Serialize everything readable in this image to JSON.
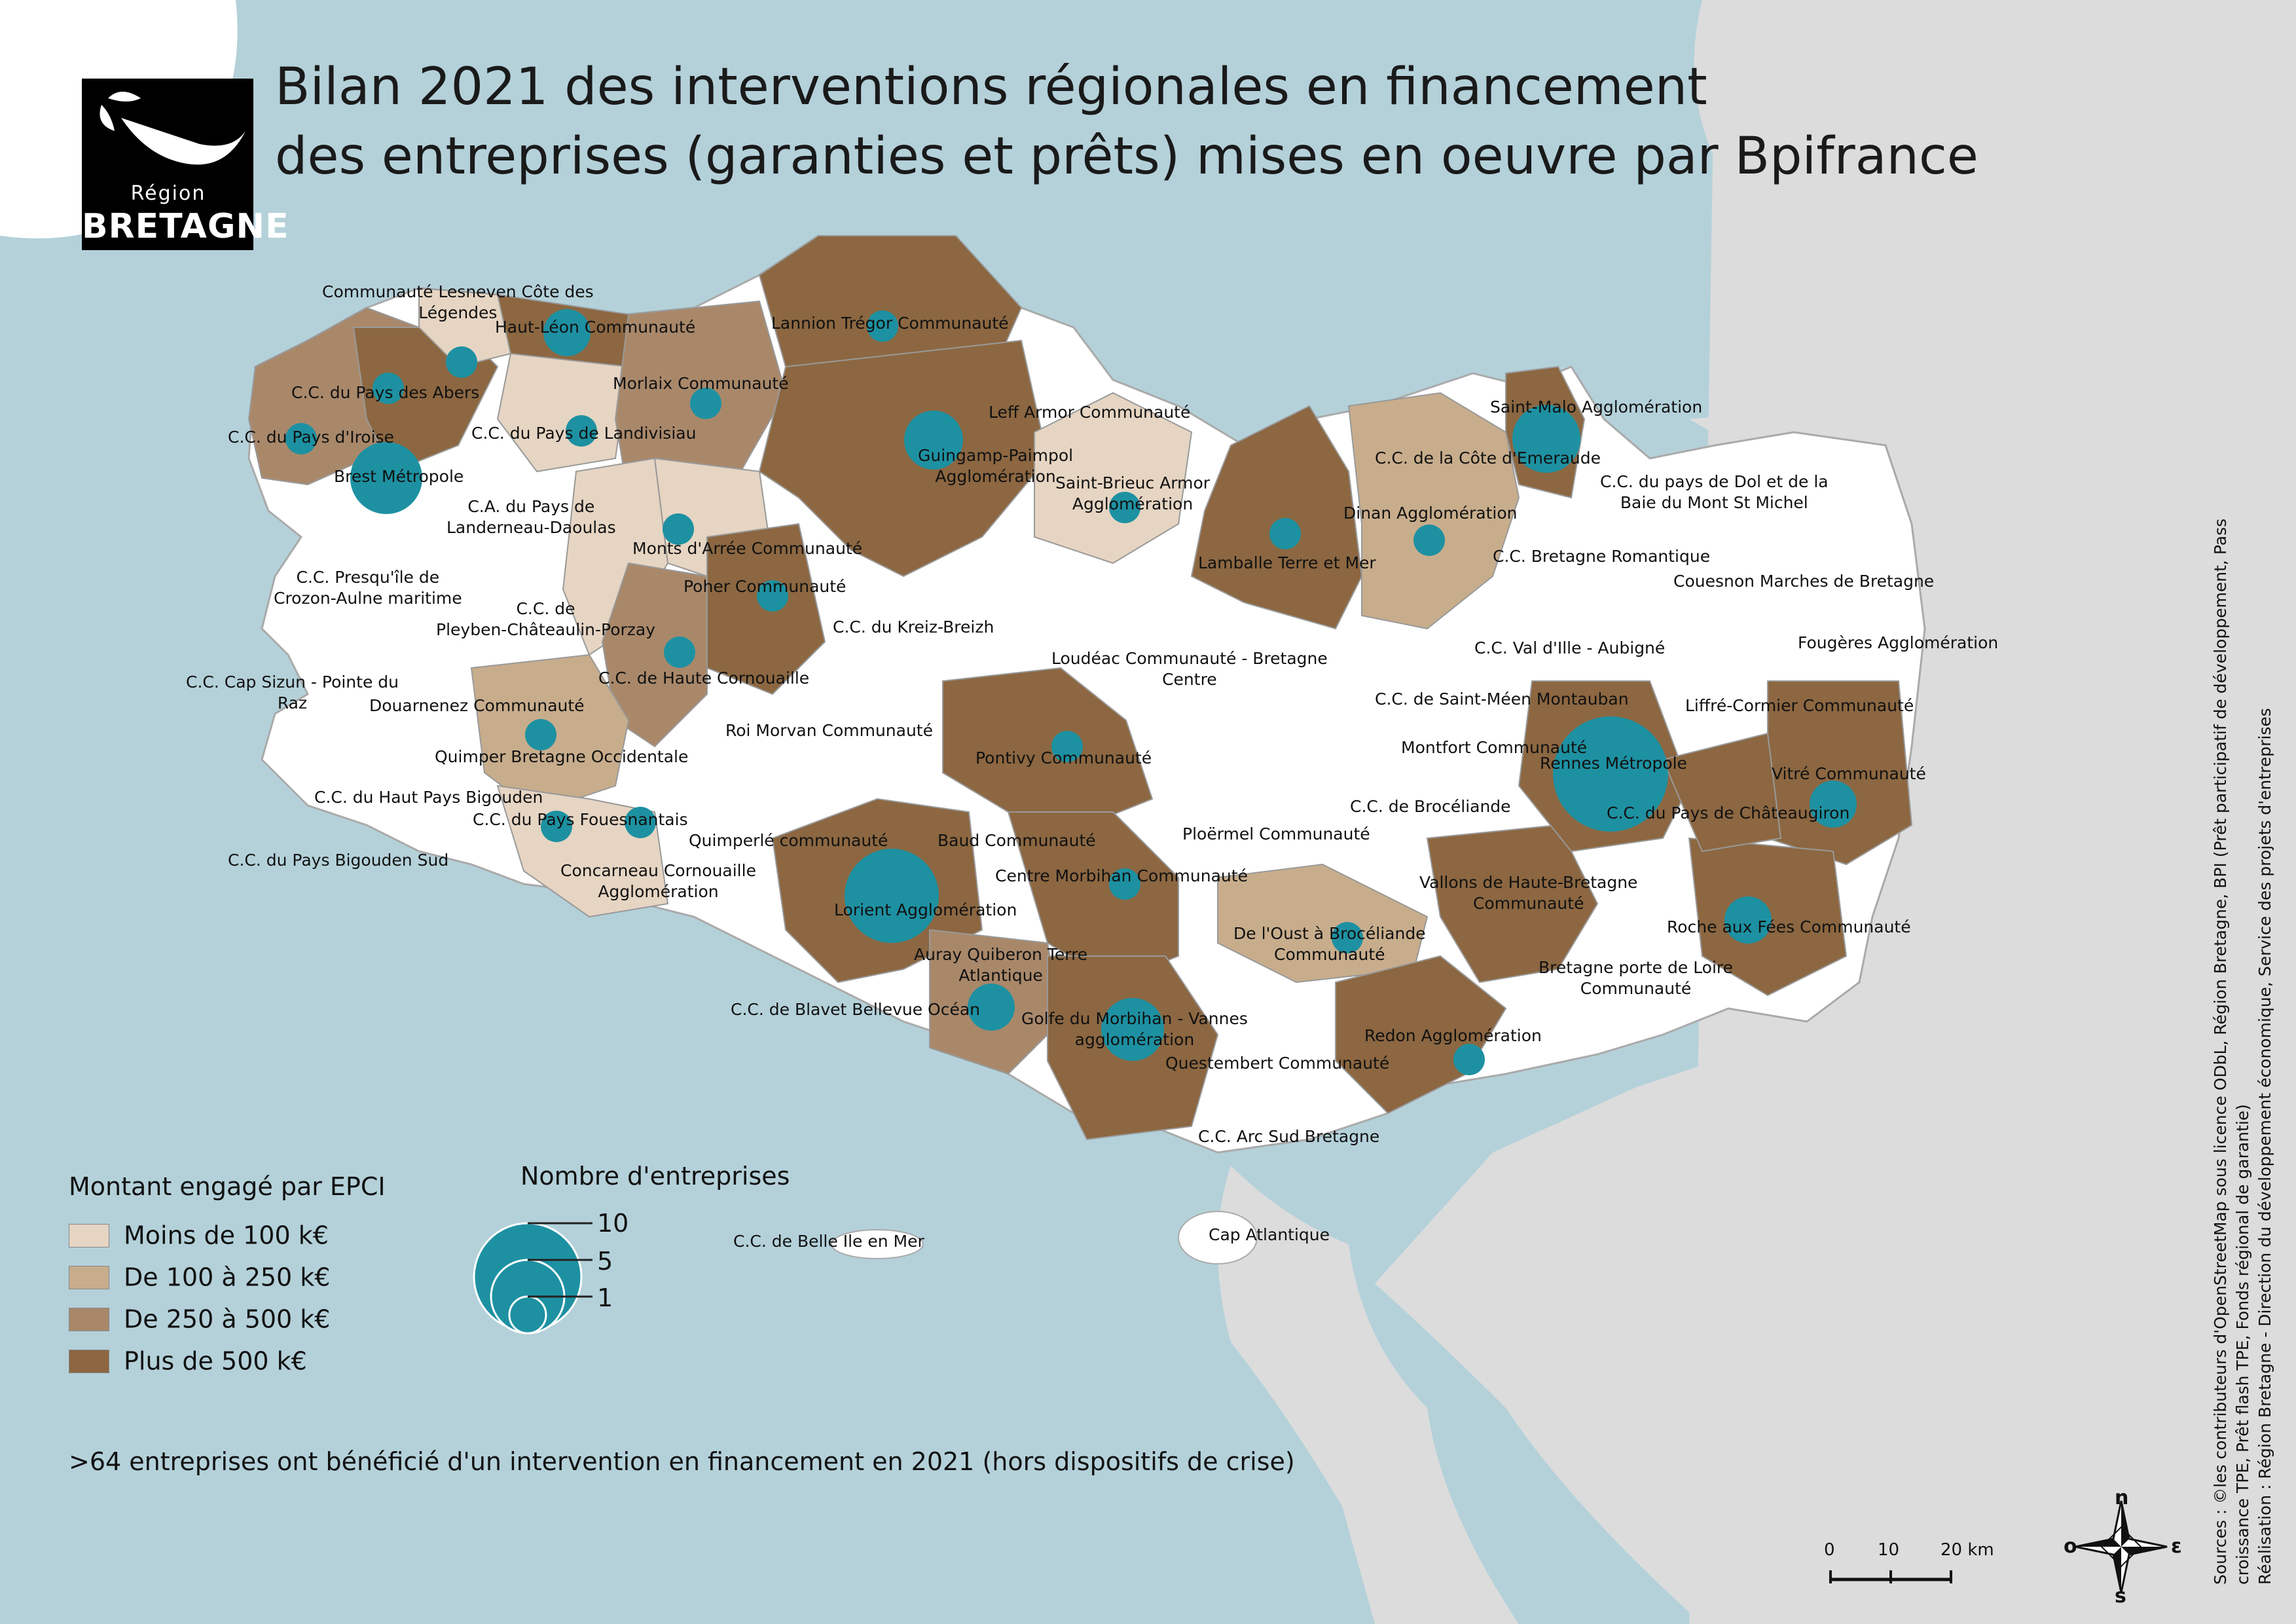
{
  "title": {
    "line1": "Bilan 2021 des interventions régionales en financement",
    "line2": "des entreprises (garanties et prêts) mises en oeuvre par Bpifrance"
  },
  "logo": {
    "line1": "Région",
    "line2": "BRETAGNE"
  },
  "colors": {
    "sea": "#b4d1da",
    "land_outside": "#dcdcdc",
    "white_epci": "#ffffff",
    "moins_100": "#e6d5c3",
    "de_100_250": "#c8ad8c",
    "de_250_500": "#a9886a",
    "plus_500": "#8c6741",
    "bubble": "#1d91a2"
  },
  "legend": {
    "montant_title": "Montant engagé par EPCI",
    "classes": [
      {
        "label": "Moins de 100 k€",
        "color": "#e6d5c3"
      },
      {
        "label": "De 100 à 250 k€",
        "color": "#c8ad8c"
      },
      {
        "label": "De 250 à 500 k€",
        "color": "#a9886a"
      },
      {
        "label": "Plus de 500 k€",
        "color": "#8c6741"
      }
    ],
    "nombre_title": "Nombre d'entreprises",
    "bubble_values": [
      "10",
      "5",
      "1"
    ]
  },
  "epci_labels": [
    {
      "id": "lesneven",
      "text": "Communauté Lesneven Côte des",
      "text2": "Légendes"
    },
    {
      "id": "hautleon",
      "text": "Haut-Léon Communauté"
    },
    {
      "id": "lannion",
      "text": "Lannion Trégor Communauté"
    },
    {
      "id": "abers",
      "text": "C.C. du Pays des Abers"
    },
    {
      "id": "morlaix",
      "text": "Morlaix Communauté"
    },
    {
      "id": "leff",
      "text": "Leff Armor Communauté"
    },
    {
      "id": "saintmalo",
      "text": "Saint-Malo Agglomération"
    },
    {
      "id": "iroise",
      "text": "C.C. du Pays d'Iroise"
    },
    {
      "id": "landivisiau",
      "text": "C.C. du Pays de Landivisiau"
    },
    {
      "id": "guingamp",
      "text": "Guingamp-Paimpol",
      "text2": "Agglomération"
    },
    {
      "id": "emeraude",
      "text": "C.C. de la Côte d'Emeraude"
    },
    {
      "id": "brest",
      "text": "Brest Métropole"
    },
    {
      "id": "stbrieuc",
      "text": "Saint-Brieuc Armor",
      "text2": "Agglomération"
    },
    {
      "id": "dol",
      "text": "C.C. du pays de Dol et de la",
      "text2": "Baie du Mont St Michel"
    },
    {
      "id": "landerneau",
      "text": "C.A. du Pays de",
      "text2": "Landerneau-Daoulas"
    },
    {
      "id": "dinan",
      "text": "Dinan Agglomération"
    },
    {
      "id": "montsarree",
      "text": "Monts d'Arrée Communauté"
    },
    {
      "id": "lamballe",
      "text": "Lamballe Terre et Mer"
    },
    {
      "id": "bretromantique",
      "text": "C.C. Bretagne Romantique"
    },
    {
      "id": "crozon",
      "text": "C.C. Presqu'île de",
      "text2": "Crozon-Aulne maritime"
    },
    {
      "id": "poher",
      "text": "Poher Communauté"
    },
    {
      "id": "couesnon",
      "text": "Couesnon Marches de Bretagne"
    },
    {
      "id": "pleyben",
      "text": "C.C. de",
      "text2": "Pleyben-Châteaulin-Porzay"
    },
    {
      "id": "kreizbreizh",
      "text": "C.C. du Kreiz-Breizh"
    },
    {
      "id": "valdille",
      "text": "C.C. Val d'Ille - Aubigné"
    },
    {
      "id": "fougeres",
      "text": "Fougères Agglomération"
    },
    {
      "id": "hautecornouaille",
      "text": "C.C. de Haute Cornouaille"
    },
    {
      "id": "loudeac",
      "text": "Loudéac Communauté - Bretagne",
      "text2": "Centre"
    },
    {
      "id": "capsizun",
      "text": "C.C. Cap Sizun - Pointe du",
      "text2": "Raz"
    },
    {
      "id": "douarnenez",
      "text": "Douarnenez Communauté"
    },
    {
      "id": "stmeen",
      "text": "C.C. de Saint-Méen Montauban"
    },
    {
      "id": "liffre",
      "text": "Liffré-Cormier Communauté"
    },
    {
      "id": "roimorvan",
      "text": "Roi Morvan Communauté"
    },
    {
      "id": "quimper",
      "text": "Quimper Bretagne Occidentale"
    },
    {
      "id": "montfort",
      "text": "Montfort Communauté"
    },
    {
      "id": "pontivy",
      "text": "Pontivy Communauté"
    },
    {
      "id": "rennes",
      "text": "Rennes Métropole"
    },
    {
      "id": "vitre",
      "text": "Vitré Communauté"
    },
    {
      "id": "hautbigouden",
      "text": "C.C. du Haut Pays Bigouden"
    },
    {
      "id": "broceliande",
      "text": "C.C. de Brocéliande"
    },
    {
      "id": "chateaugiron",
      "text": "C.C. du Pays de Châteaugiron"
    },
    {
      "id": "fouesnant",
      "text": "C.C. du Pays Fouesnantais"
    },
    {
      "id": "ploermel",
      "text": "Ploërmel Communauté"
    },
    {
      "id": "quimperle",
      "text": "Quimperlé communauté"
    },
    {
      "id": "baud",
      "text": "Baud Communauté"
    },
    {
      "id": "bigoudensud",
      "text": "C.C. du Pays Bigouden Sud"
    },
    {
      "id": "concarneau",
      "text": "Concarneau Cornouaille",
      "text2": "Agglomération"
    },
    {
      "id": "centremorbihan",
      "text": "Centre Morbihan Communauté"
    },
    {
      "id": "vallons",
      "text": "Vallons de Haute-Bretagne",
      "text2": "Communauté"
    },
    {
      "id": "lorient",
      "text": "Lorient Agglomération"
    },
    {
      "id": "oustbroceliande",
      "text": "De l'Oust à Brocéliande",
      "text2": "Communauté"
    },
    {
      "id": "rocheauxfees",
      "text": "Roche aux Fées Communauté"
    },
    {
      "id": "auray",
      "text": "Auray Quiberon Terre",
      "text2": "Atlantique"
    },
    {
      "id": "bretporteloire",
      "text": "Bretagne porte de Loire",
      "text2": "Communauté"
    },
    {
      "id": "blavet",
      "text": "C.C. de Blavet Bellevue Océan"
    },
    {
      "id": "golfe",
      "text": "Golfe du Morbihan - Vannes",
      "text2": "agglomération"
    },
    {
      "id": "redon",
      "text": "Redon Agglomération"
    },
    {
      "id": "questembert",
      "text": "Questembert Communauté"
    },
    {
      "id": "arcsud",
      "text": "C.C. Arc Sud Bretagne"
    },
    {
      "id": "belleile",
      "text": "C.C. de Belle Ile en Mer"
    },
    {
      "id": "capatlantique",
      "text": "Cap Atlantique"
    }
  ],
  "note": ">64 entreprises ont bénéficié d'un intervention en financement en 2021 (hors dispositifs de crise)",
  "sources": {
    "line1": "Sources : ©les contributeurs d'OpenStreetMap sous licence ODbL, Région Bretagne, BPI (Prêt participatif de développement, Pass",
    "line2": "croissance TPE, Prêt flash TPE, Fonds régional de garantie)",
    "line3": "Réalisation : Région Bretagne - Direction du développement économique, Service des projets d'entreprises"
  },
  "scale": {
    "labels": [
      "0",
      "10",
      "20 km"
    ]
  },
  "compass": {
    "n": "n",
    "e": "ε",
    "s": "s",
    "o": "o"
  }
}
